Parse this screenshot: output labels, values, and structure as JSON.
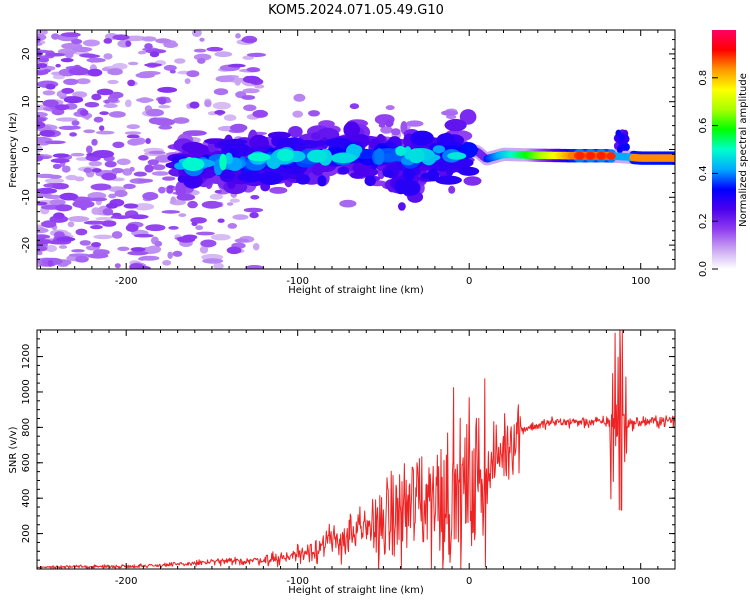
{
  "figure": {
    "title": "KOM5.2024.071.05.49.G10"
  },
  "chart_data": [
    {
      "type": "heatmap",
      "xlabel": "Height of straight line (km)",
      "ylabel": "Frequency (Hz)",
      "xlim": [
        -252,
        120
      ],
      "ylim": [
        -25,
        25
      ],
      "xticks": [
        -200,
        -100,
        0,
        100
      ],
      "yticks": [
        -20,
        -10,
        0,
        10,
        20
      ],
      "colorbar": {
        "label": "Normalized spectral amplitude",
        "range": [
          0,
          1
        ],
        "ticks": [
          0.0,
          0.2,
          0.4,
          0.6,
          0.8
        ],
        "colormap": [
          "#ffffff",
          "#c9a4f2",
          "#8f3cf0",
          "#4b00ee",
          "#0000ff",
          "#00aaff",
          "#00ffcc",
          "#00ff00",
          "#a8ff00",
          "#ffff00",
          "#ff9900",
          "#ff0000",
          "#ff0066"
        ]
      },
      "ridge": {
        "x": [
          -170,
          -150,
          -130,
          -110,
          -90,
          -70,
          -50,
          -30,
          -10,
          0,
          5,
          10,
          20,
          40,
          60,
          80,
          90,
          100,
          120
        ],
        "y": [
          -3,
          -3,
          -2.5,
          -2,
          -1.5,
          -1,
          -1,
          -1.5,
          -0.5,
          0,
          -0.5,
          -2,
          -1,
          -1.2,
          -1.3,
          -1.3,
          -1.5,
          -1.8,
          -1.8
        ]
      }
    },
    {
      "type": "line",
      "xlabel": "Height of straight line (km)",
      "ylabel": "SNR (v/v)",
      "xlim": [
        -252,
        120
      ],
      "ylim": [
        0,
        1350
      ],
      "xticks": [
        -200,
        -100,
        0,
        100
      ],
      "yticks": [
        200,
        400,
        600,
        800,
        1000,
        1200
      ],
      "series": [
        {
          "color": "#ee2222",
          "x": [
            -252,
            -200,
            -170,
            -150,
            -130,
            -110,
            -100,
            -80,
            -60,
            -40,
            -30,
            -20,
            -10,
            0,
            10,
            20,
            30,
            50,
            70,
            80,
            85,
            88,
            90,
            95,
            100,
            120
          ],
          "y": [
            10,
            15,
            25,
            40,
            45,
            60,
            85,
            150,
            220,
            310,
            390,
            420,
            430,
            450,
            540,
            680,
            790,
            830,
            830,
            830,
            830,
            850,
            830,
            820,
            830,
            840
          ]
        }
      ]
    }
  ]
}
